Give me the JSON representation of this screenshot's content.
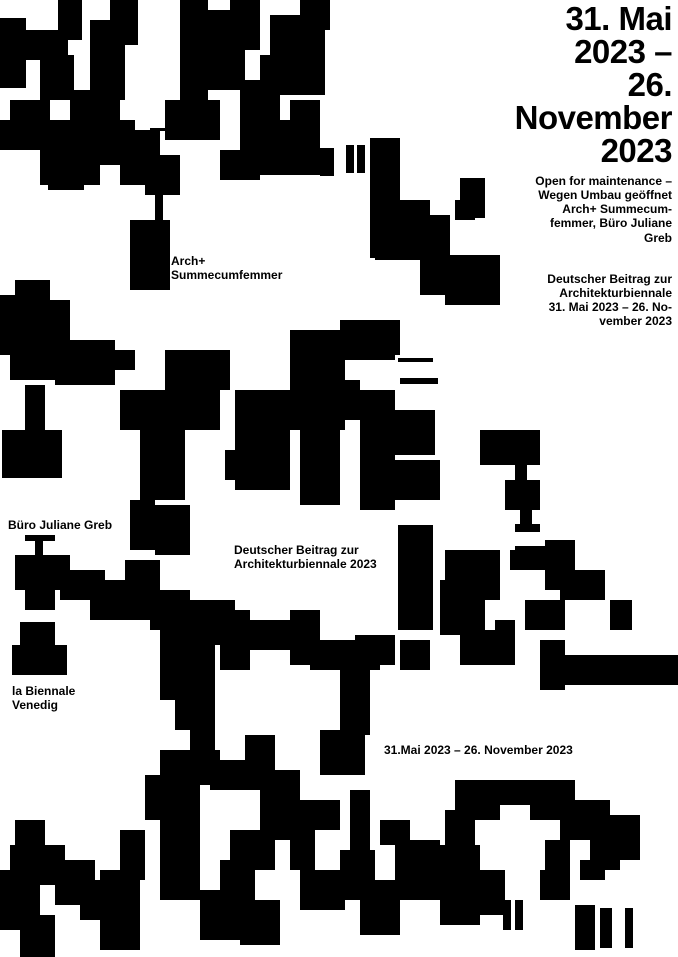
{
  "poster": {
    "date_headline": "31. Mai\n2023 –\n26.\nNovember\n2023",
    "info_block_1": "Open for maintenance –\nWegen Umbau geöffnet\nArch+ Summecum-\nfemmer, Büro Juliane\nGreb",
    "info_block_2": "Deutscher Beitrag zur\nArchitekturbiennale\n31. Mai 2023 – 26. No-\nvember 2023",
    "label_arch": "Arch+\nSummecumfemmer",
    "label_buero": "Büro Juliane Greb",
    "label_beitrag": "Deutscher Beitrag zur\nArchitekturbiennale 2023",
    "label_biennale": "la Biennale\nVenedig",
    "label_date": "31.Mai 2023 – 26. November 2023"
  },
  "colors": {
    "ink": "#000000",
    "paper": "#ffffff"
  }
}
